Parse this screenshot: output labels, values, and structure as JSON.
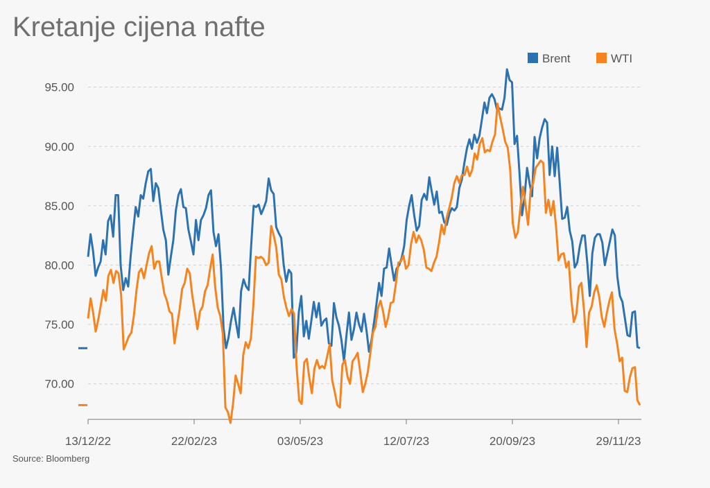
{
  "chart_data": {
    "type": "line",
    "title": "Kretanje cijena nafte",
    "source": "Source: Bloomberg",
    "ylim": [
      67,
      96.5
    ],
    "yticks": [
      "95.00",
      "90.00",
      "85.00",
      "80.00",
      "75.00",
      "70.00"
    ],
    "ytick_values": [
      95,
      90,
      85,
      80,
      75,
      70
    ],
    "xticks": [
      "13/12/22",
      "22/02/23",
      "03/05/23",
      "12/07/23",
      "20/09/23",
      "29/11/23"
    ],
    "x_start": "13/12/22",
    "x_end": "01/12/23",
    "grid": true,
    "legend_position": "top-right",
    "colors": {
      "Brent": "#2d72b0",
      "WTI": "#f5841f"
    },
    "series": [
      {
        "name": "Brent",
        "last_value": 73.0,
        "values": [
          80.7,
          82.6,
          81.2,
          79.1,
          79.8,
          80.3,
          82.1,
          80.9,
          83.7,
          84.2,
          82.4,
          85.9,
          85.9,
          80.0,
          77.9,
          78.9,
          78.2,
          80.8,
          82.9,
          84.9,
          84.1,
          85.9,
          85.6,
          86.9,
          87.9,
          88.1,
          85.4,
          86.9,
          86.5,
          84.7,
          83.0,
          82.1,
          79.2,
          80.7,
          82.1,
          84.6,
          85.9,
          86.4,
          84.9,
          84.8,
          83.0,
          82.0,
          80.9,
          83.8,
          82.1,
          83.8,
          84.2,
          84.8,
          85.9,
          86.3,
          82.8,
          81.6,
          82.6,
          79.7,
          74.7,
          73.0,
          73.9,
          75.3,
          76.4,
          75.1,
          73.9,
          77.8,
          78.8,
          78.2,
          77.9,
          81.6,
          85.0,
          84.9,
          85.1,
          84.3,
          84.8,
          85.4,
          87.3,
          86.3,
          86.0,
          83.2,
          82.7,
          82.3,
          80.0,
          78.6,
          79.6,
          79.3,
          72.2,
          72.6,
          76.0,
          77.4,
          74.0,
          75.3,
          73.8,
          75.3,
          76.9,
          75.6,
          76.8,
          74.9,
          75.3,
          75.5,
          73.4,
          73.2,
          76.8,
          75.6,
          74.9,
          73.7,
          71.9,
          74.1,
          76.0,
          73.7,
          74.6,
          76.0,
          75.0,
          74.4,
          75.9,
          74.5,
          72.7,
          73.7,
          75.2,
          76.8,
          78.5,
          77.4,
          79.7,
          79.8,
          81.4,
          80.0,
          78.7,
          79.7,
          80.0,
          80.6,
          81.6,
          83.8,
          85.0,
          85.9,
          84.2,
          82.9,
          83.3,
          85.5,
          86.0,
          85.5,
          87.4,
          86.2,
          85.1,
          86.2,
          84.4,
          84.5,
          83.6,
          83.4,
          84.3,
          84.8,
          84.6,
          84.9,
          86.5,
          87.2,
          88.6,
          89.8,
          90.6,
          89.8,
          91.0,
          90.3,
          90.9,
          92.3,
          93.7,
          92.8,
          94.1,
          94.4,
          94.0,
          93.1,
          93.2,
          93.1,
          94.1,
          96.5,
          95.6,
          95.4,
          90.2,
          90.9,
          87.7,
          84.2,
          85.8,
          88.2,
          86.9,
          85.8,
          90.8,
          89.0,
          90.7,
          91.6,
          92.3,
          92.0,
          87.6,
          90.0,
          87.5,
          89.9,
          87.0,
          83.9,
          84.0,
          84.9,
          82.9,
          82.0,
          79.8,
          80.2,
          81.6,
          82.5,
          82.5,
          80.2,
          77.4,
          81.0,
          82.3,
          82.6,
          82.6,
          81.9,
          80.0,
          81.0,
          82.0,
          83.0,
          82.5,
          79.0,
          77.4,
          76.9,
          75.5,
          74.1,
          74.0,
          76.0,
          76.1,
          73.1,
          73.0
        ]
      },
      {
        "name": "WTI",
        "last_value": 68.2,
        "values": [
          75.5,
          77.2,
          76.0,
          74.4,
          75.4,
          76.6,
          77.9,
          77.0,
          79.1,
          79.6,
          78.5,
          79.5,
          79.3,
          77.5,
          72.9,
          73.4,
          74.0,
          74.3,
          75.7,
          77.8,
          79.4,
          79.7,
          78.9,
          80.0,
          81.0,
          81.6,
          79.7,
          80.3,
          80.3,
          78.9,
          77.6,
          77.0,
          76.1,
          75.9,
          73.4,
          74.9,
          76.3,
          78.0,
          78.5,
          79.7,
          79.3,
          77.4,
          76.0,
          74.6,
          76.1,
          76.5,
          77.8,
          78.3,
          79.7,
          80.9,
          78.1,
          76.4,
          75.7,
          74.2,
          68.0,
          67.6,
          66.7,
          68.3,
          70.7,
          70.0,
          69.2,
          72.4,
          73.5,
          73.0,
          73.8,
          76.6,
          80.7,
          80.6,
          80.7,
          80.5,
          80.0,
          80.2,
          83.3,
          82.5,
          81.5,
          79.2,
          78.8,
          77.3,
          76.4,
          75.7,
          76.3,
          75.9,
          71.4,
          68.6,
          68.3,
          71.8,
          72.1,
          70.5,
          69.2,
          71.3,
          72.0,
          71.3,
          71.5,
          71.3,
          72.3,
          73.3,
          70.3,
          69.3,
          68.2,
          68.0,
          71.6,
          72.0,
          70.6,
          70.0,
          71.9,
          72.2,
          72.6,
          71.0,
          69.3,
          70.0,
          71.0,
          72.6,
          74.3,
          74.8,
          76.4,
          77.0,
          76.1,
          74.8,
          75.6,
          76.8,
          76.9,
          78.4,
          80.2,
          80.3,
          80.8,
          79.7,
          80.0,
          81.8,
          82.8,
          81.9,
          82.5,
          82.1,
          81.3,
          79.8,
          79.7,
          79.5,
          80.2,
          80.7,
          81.9,
          83.4,
          82.6,
          84.0,
          84.8,
          85.7,
          86.9,
          87.5,
          86.9,
          87.6,
          87.6,
          88.3,
          87.5,
          88.0,
          89.4,
          88.9,
          90.2,
          90.7,
          89.5,
          89.7,
          89.6,
          90.4,
          91.0,
          93.6,
          92.5,
          91.5,
          90.4,
          89.9,
          88.0,
          83.5,
          82.3,
          82.8,
          84.9,
          86.6,
          85.1,
          83.4,
          86.3,
          86.9,
          88.2,
          88.5,
          88.8,
          88.6,
          84.4,
          85.5,
          84.2,
          85.4,
          83.3,
          80.4,
          80.9,
          81.0,
          79.8,
          80.3,
          77.1,
          75.2,
          75.9,
          78.2,
          78.5,
          76.2,
          73.1,
          76.0,
          76.5,
          77.7,
          78.3,
          77.3,
          75.6,
          74.8,
          76.0,
          77.0,
          77.7,
          74.6,
          73.4,
          71.9,
          72.2,
          69.4,
          69.3,
          70.5,
          71.3,
          71.4,
          68.6,
          68.2
        ]
      }
    ]
  }
}
